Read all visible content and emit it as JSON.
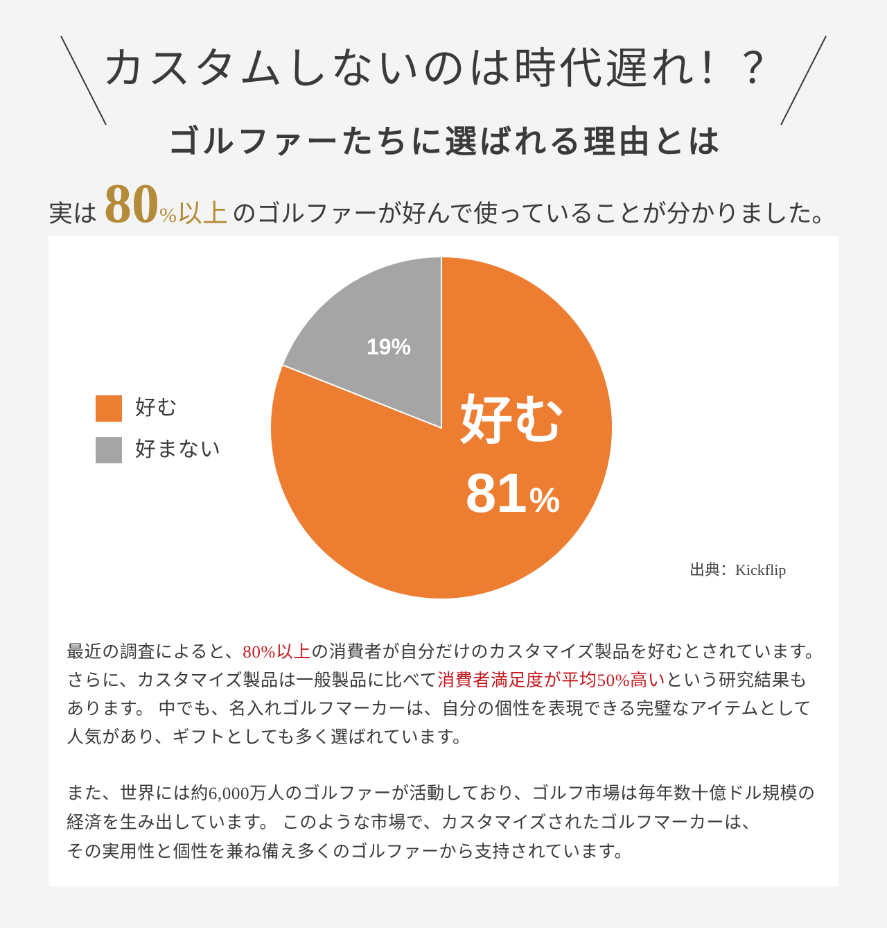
{
  "theme": {
    "page_background": "#F4F4F4",
    "panel_background": "#FFFFFF",
    "text_color": "#3A3A3A",
    "gold_accent": "#B48B39",
    "highlight_red": "#C41A1F"
  },
  "header": {
    "title": "カスタムしないのは時代遅れ！？",
    "subtitle": "ゴルファーたちに選ばれる理由とは",
    "lead": {
      "prefix": "実は",
      "highlight_number": "80",
      "highlight_unit": "%",
      "highlight_suffix": "以上",
      "suffix": "のゴルファーが好んで使っていることが分かりました。"
    }
  },
  "chart_data": {
    "type": "pie",
    "categories": [
      "好む",
      "好まない"
    ],
    "values": [
      81,
      19
    ],
    "unit": "%",
    "colors": [
      "#ED7D31",
      "#A5A5A5"
    ],
    "legend_position": "left",
    "source": "出典：Kickflip"
  },
  "body": {
    "paragraphs": [
      {
        "lines": [
          [
            {
              "text": "最近の調査によると、",
              "highlight": false
            },
            {
              "text": "80%以上",
              "highlight": true
            },
            {
              "text": "の消費者が自分だけのカスタマイズ製品を好むとされています。",
              "highlight": false
            }
          ],
          [
            {
              "text": "さらに、カスタマイズ製品は一般製品に比べて",
              "highlight": false
            },
            {
              "text": "消費者満足度が平均50%高い",
              "highlight": true
            },
            {
              "text": "という研究結果も",
              "highlight": false
            }
          ],
          [
            {
              "text": "あります。 中でも、名入れゴルフマーカーは、自分の個性を表現できる完璧なアイテムとして",
              "highlight": false
            }
          ],
          [
            {
              "text": "人気があり、ギフトとしても多く選ばれています。",
              "highlight": false
            }
          ]
        ]
      },
      {
        "lines": [
          [
            {
              "text": "また、世界には約6,000万人のゴルファーが活動しており、ゴルフ市場は毎年数十億ドル規模の",
              "highlight": false
            }
          ],
          [
            {
              "text": "経済を生み出しています。 このような市場で、カスタマイズされたゴルフマーカーは、",
              "highlight": false
            }
          ],
          [
            {
              "text": "その実用性と個性を兼ね備え多くのゴルファーから支持されています。",
              "highlight": false
            }
          ]
        ]
      }
    ]
  }
}
